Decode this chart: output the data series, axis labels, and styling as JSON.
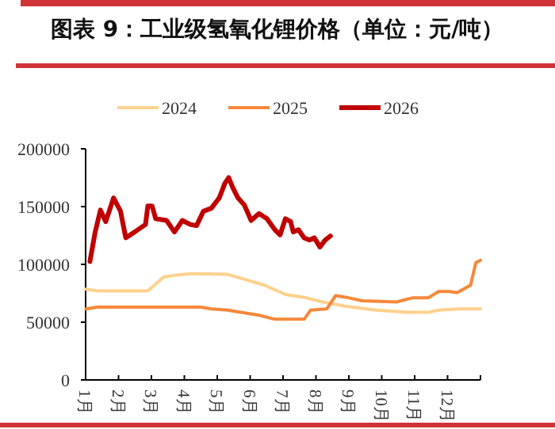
{
  "chart_data": {
    "type": "line",
    "title": "图表 9：工业级氢氧化锂价格（单位：元/吨）",
    "xlim": [
      1,
      13
    ],
    "xticks": [
      {
        "value": 1,
        "label": "1月"
      },
      {
        "value": 2,
        "label": "2月"
      },
      {
        "value": 3,
        "label": "3月"
      },
      {
        "value": 4,
        "label": "4月"
      },
      {
        "value": 5,
        "label": "5月"
      },
      {
        "value": 6,
        "label": "6月"
      },
      {
        "value": 7,
        "label": "7月"
      },
      {
        "value": 8,
        "label": "8月"
      },
      {
        "value": 9,
        "label": "9月"
      },
      {
        "value": 10,
        "label": "10月"
      },
      {
        "value": 11,
        "label": "11月"
      },
      {
        "value": 12,
        "label": "12月"
      },
      {
        "value": 13,
        "label": null
      }
    ],
    "ylim": [
      0,
      200000
    ],
    "yticks": [
      0,
      50000,
      100000,
      150000,
      200000
    ],
    "grid": false,
    "legend": "top",
    "marker": "none",
    "line_style": "solid",
    "series": [
      {
        "name": "2024",
        "color": "#fdd18c",
        "x": [
          1.0,
          1.37,
          2.89,
          3.37,
          3.7,
          4.18,
          5.3,
          5.95,
          6.43,
          7.07,
          7.71,
          8.2,
          8.84,
          9.8,
          10.77,
          11.41,
          11.73,
          12.37,
          13.0
        ],
        "values": [
          78500,
          77000,
          77000,
          89000,
          90500,
          92000,
          91500,
          86000,
          82000,
          74000,
          71000,
          67500,
          64000,
          60500,
          58500,
          58500,
          60500,
          61500,
          61500
        ]
      },
      {
        "name": "2025",
        "color": "#f5883b",
        "x": [
          1.01,
          1.37,
          4.5,
          4.81,
          5.3,
          6.27,
          6.75,
          7.64,
          7.84,
          8.33,
          8.6,
          9.0,
          9.4,
          10.45,
          10.93,
          11.41,
          11.73,
          12.05,
          12.29,
          12.7,
          12.86,
          13.0
        ],
        "values": [
          61500,
          63000,
          63000,
          61500,
          60500,
          56000,
          52500,
          52500,
          60500,
          61500,
          73000,
          71000,
          68500,
          67500,
          71000,
          71000,
          76500,
          76500,
          75500,
          82000,
          101500,
          103500
        ]
      },
      {
        "name": "2026",
        "color": "#c00000",
        "x": [
          1.13,
          1.29,
          1.45,
          1.61,
          1.85,
          2.06,
          2.22,
          2.49,
          2.82,
          2.89,
          3.02,
          3.13,
          3.46,
          3.7,
          3.94,
          4.18,
          4.37,
          4.58,
          4.82,
          5.06,
          5.23,
          5.35,
          5.47,
          5.63,
          5.82,
          6.03,
          6.27,
          6.51,
          6.75,
          6.91,
          7.07,
          7.23,
          7.31,
          7.47,
          7.64,
          7.8,
          7.95,
          8.12,
          8.28,
          8.44
        ],
        "values": [
          102500,
          128000,
          147000,
          137000,
          157500,
          146000,
          123000,
          128000,
          134500,
          150500,
          150500,
          139500,
          138000,
          128000,
          138000,
          134500,
          133500,
          146000,
          148500,
          157500,
          170000,
          175000,
          166500,
          157500,
          151500,
          138000,
          144000,
          139500,
          130000,
          125500,
          139500,
          137000,
          128000,
          130000,
          123000,
          121000,
          123000,
          115000,
          121000,
          124500
        ]
      }
    ]
  }
}
